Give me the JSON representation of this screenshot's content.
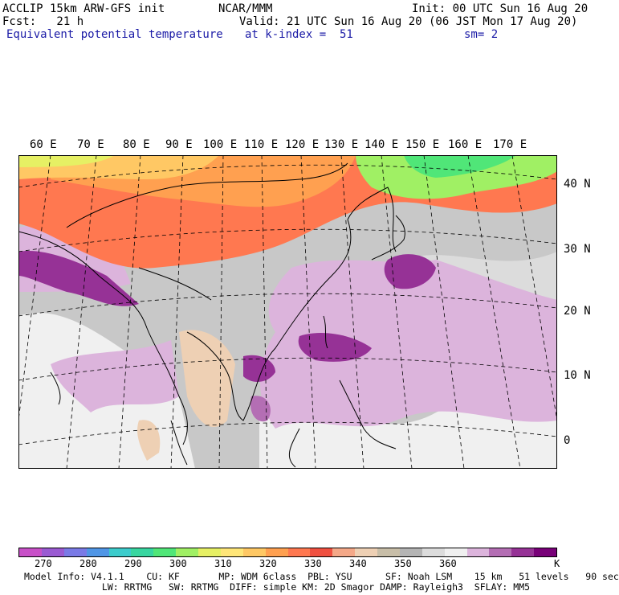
{
  "header": {
    "model_line": "ACCLIP 15km ARW-GFS init",
    "center": "NCAR/MMM",
    "init": "Init: 00 UTC Sun 16 Aug 20",
    "fcst": "Fcst:   21 h",
    "valid": "Valid: 21 UTC Sun 16 Aug 20 (06 JST Mon 17 Aug 20)",
    "field": "Equivalent potential temperature",
    "level": "at k-index =  51",
    "smooth": "sm= 2"
  },
  "map": {
    "lon_labels": [
      "60 E",
      "70 E",
      "80 E",
      "90 E",
      "100 E",
      "110 E",
      "120 E",
      "130 E",
      "140 E",
      "150 E",
      "160 E",
      "170 E"
    ],
    "lat_labels": [
      "40 N",
      "30 N",
      "20 N",
      "10 N",
      "0"
    ]
  },
  "colorbar": {
    "colors": [
      "#c850c8",
      "#9a5ad2",
      "#7a7ae6",
      "#5096e6",
      "#3ccccc",
      "#38d6a0",
      "#50e678",
      "#a0f064",
      "#e6f064",
      "#ffe678",
      "#ffc864",
      "#ffa050",
      "#ff7850",
      "#f05040",
      "#f4a888",
      "#eed0b4",
      "#c8bea8",
      "#b4b4b4",
      "#dcdcdc",
      "#f0f0f0",
      "#dcb4dc",
      "#b46eb4",
      "#963296",
      "#780078"
    ],
    "labels": [
      "270",
      "280",
      "290",
      "300",
      "310",
      "320",
      "330",
      "340",
      "350",
      "360",
      "K"
    ]
  },
  "footer": {
    "line1": "Model Info: V4.1.1    CU: KF       MP: WDM 6class  PBL: YSU      SF: Noah LSM    15 km   51 levels   90 sec",
    "line2": "              LW: RRTMG   SW: RRTMG  DIFF: simple KM: 2D Smagor DAMP: Rayleigh3  SFLAY: MM5"
  }
}
